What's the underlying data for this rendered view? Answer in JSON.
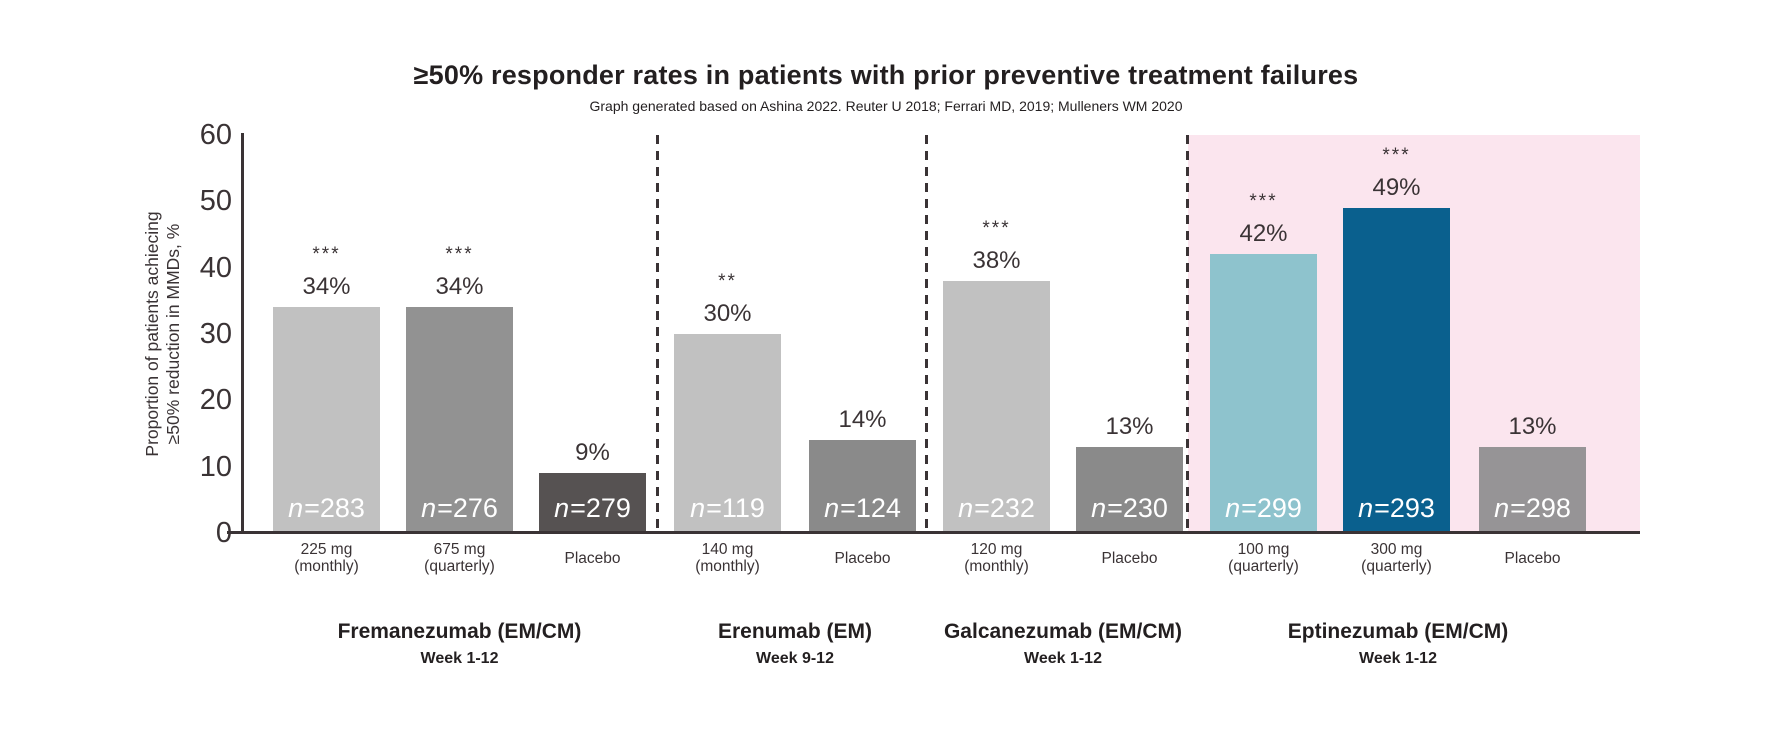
{
  "title": "≥50% responder rates in patients with prior preventive treatment failures",
  "subtitle": "Graph generated based on Ashina 2022. Reuter U 2018; Ferrari MD, 2019; Mulleners WM 2020",
  "y_axis": {
    "label_line1": "Proportion of  patients achiecing",
    "label_line2": "≥50% reduction in MMDs, %",
    "ticks": [
      0,
      10,
      20,
      30,
      40,
      50,
      60
    ]
  },
  "colors": {
    "text": "#3a3335",
    "axis": "#3a3335",
    "highlight_background": "#fbe5ee",
    "bar_light_gray": "#c1c1c1",
    "bar_medium_gray": "#929292",
    "bar_dark_gray": "#565252",
    "bar_placebo_gray": "#8a8a8a",
    "bar_teal": "#8ec3cd",
    "bar_blue": "#0a608e"
  },
  "chart_data": {
    "type": "bar",
    "title": "≥50% responder rates in patients with prior preventive treatment failures",
    "source_note": "Graph generated based on Ashina 2022. Reuter U 2018; Ferrari MD, 2019; Mulleners WM 2020",
    "ylabel": "Proportion of patients achiecing ≥50% reduction in MMDs, %",
    "ylim": [
      0,
      60
    ],
    "grid": false,
    "legend": false,
    "groups": [
      {
        "name": "Fremanezumab (EM/CM)",
        "week": "Week 1-12",
        "highlighted": false,
        "bars": [
          {
            "dose_line1": "225 mg",
            "dose_line2": "(monthly)",
            "value": 34,
            "value_label": "34%",
            "sig": "***",
            "n_label": "n=283",
            "color": "#c1c1c1"
          },
          {
            "dose_line1": "675 mg",
            "dose_line2": "(quarterly)",
            "value": 34,
            "value_label": "34%",
            "sig": "***",
            "n_label": "n=276",
            "color": "#929292"
          },
          {
            "dose_line1": "Placebo",
            "dose_line2": "",
            "value": 9,
            "value_label": "9%",
            "sig": "",
            "n_label": "n=279",
            "color": "#565252"
          }
        ]
      },
      {
        "name": "Erenumab (EM)",
        "week": "Week 9-12",
        "highlighted": false,
        "bars": [
          {
            "dose_line1": "140 mg",
            "dose_line2": "(monthly)",
            "value": 30,
            "value_label": "30%",
            "sig": "**",
            "n_label": "n=119",
            "color": "#c1c1c1"
          },
          {
            "dose_line1": "Placebo",
            "dose_line2": "",
            "value": 14,
            "value_label": "14%",
            "sig": "",
            "n_label": "n=124",
            "color": "#8a8a8a"
          }
        ]
      },
      {
        "name": "Galcanezumab (EM/CM)",
        "week": "Week 1-12",
        "highlighted": false,
        "bars": [
          {
            "dose_line1": "120 mg",
            "dose_line2": "(monthly)",
            "value": 38,
            "value_label": "38%",
            "sig": "***",
            "n_label": "n=232",
            "color": "#c1c1c1"
          },
          {
            "dose_line1": "Placebo",
            "dose_line2": "",
            "value": 13,
            "value_label": "13%",
            "sig": "",
            "n_label": "n=230",
            "color": "#8a8a8a"
          }
        ]
      },
      {
        "name": "Eptinezumab (EM/CM)",
        "week": "Week 1-12",
        "highlighted": true,
        "bars": [
          {
            "dose_line1": "100 mg",
            "dose_line2": "(quarterly)",
            "value": 42,
            "value_label": "42%",
            "sig": "***",
            "n_label": "n=299",
            "color": "#8ec3cd"
          },
          {
            "dose_line1": "300 mg",
            "dose_line2": "(quarterly)",
            "value": 49,
            "value_label": "49%",
            "sig": "***",
            "n_label": "n=293",
            "color": "#0a608e"
          },
          {
            "dose_line1": "Placebo",
            "dose_line2": "",
            "value": 13,
            "value_label": "13%",
            "sig": "",
            "n_label": "n=298",
            "color": "#969496"
          }
        ]
      }
    ]
  }
}
